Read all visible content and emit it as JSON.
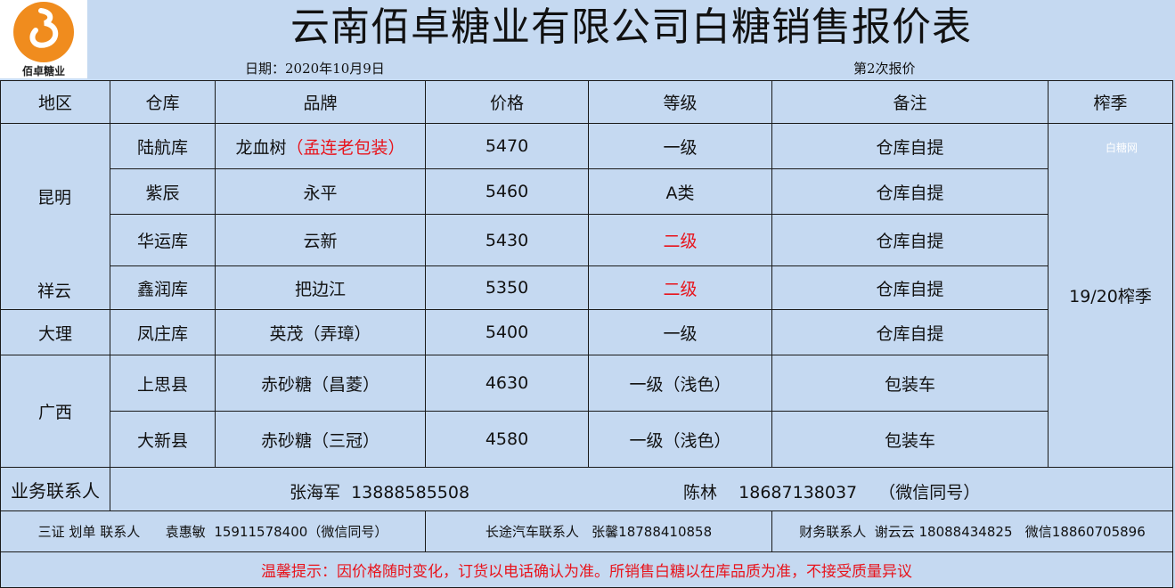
{
  "header": {
    "title": "云南佰卓糖业有限公司白糖销售报价表",
    "logo_text": "佰卓糖业",
    "date": "日期：2020年10月9日",
    "round": "第2次报价"
  },
  "columns": [
    "地区",
    "仓库",
    "品牌",
    "价格",
    "等级",
    "备注",
    "榨季"
  ],
  "regions": [
    "昆明",
    "祥云",
    "大理",
    "广西"
  ],
  "rows": [
    {
      "warehouse": "陆航库",
      "brand": "龙血树",
      "brand_note": "（孟连老包装）",
      "price": "5470",
      "grade": "一级",
      "grade_red": false,
      "remark": "仓库自提"
    },
    {
      "warehouse": "紫辰",
      "brand": "永平",
      "price": "5460",
      "grade": "A类",
      "grade_red": false,
      "remark": "仓库自提"
    },
    {
      "warehouse": "华运库",
      "brand": "云新",
      "price": "5430",
      "grade": "二级",
      "grade_red": true,
      "remark": "仓库自提"
    },
    {
      "warehouse": "鑫润库",
      "brand": "把边江",
      "price": "5350",
      "grade": "二级",
      "grade_red": true,
      "remark": "仓库自提"
    },
    {
      "warehouse": "凤庄库",
      "brand": "英茂（弄璋）",
      "price": "5400",
      "grade": "一级",
      "grade_red": false,
      "remark": "仓库自提"
    },
    {
      "warehouse": "上思县",
      "brand": "赤砂糖（昌菱）",
      "price": "4630",
      "grade": "一级（浅色）",
      "grade_red": false,
      "remark": "包装车"
    },
    {
      "warehouse": "大新县",
      "brand": "赤砂糖（三冠）",
      "price": "4580",
      "grade": "一级（浅色）",
      "grade_red": false,
      "remark": "包装车"
    }
  ],
  "season": "19/20榨季",
  "watermark": "白糖网",
  "contacts": {
    "label": "业务联系人",
    "person1": "张海军  13888585508",
    "person2": "陈林    18687138037    （微信同号）",
    "docs": "三证 划单 联系人      袁惠敏  15911578400（微信同号）",
    "transport": "长途汽车联系人   张馨18788410858",
    "finance": "财务联系人  谢云云 18088434825   微信18860705896"
  },
  "notice": "温馨提示：因价格随时变化，订货以电话确认为准。所销售白糖以在库品质为准，不接受质量异议",
  "colors": {
    "background": "#c5d9f1",
    "warning": "#e8141c",
    "logo_orange": "#f08c1e"
  }
}
